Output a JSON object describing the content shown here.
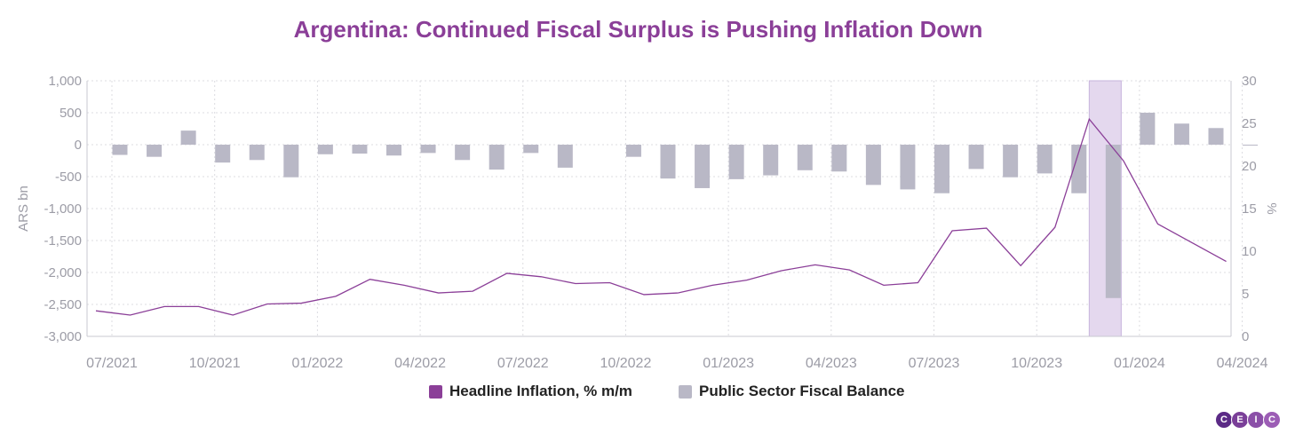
{
  "colors": {
    "title": "#8b3f98",
    "line": "#8b3f98",
    "bar": "#b9b8c6",
    "highlight": "#e4d8ee",
    "highlight_border": "#c6b3dc",
    "axis_text": "#9c9ca6",
    "grid": "#dcdce0"
  },
  "chart_data": {
    "type": "bar",
    "title": "Argentina: Continued Fiscal Surplus is Pushing Inflation Down",
    "ylabel_left": "ARS bn",
    "ylabel_right": "%",
    "left_ylim": [
      -3000,
      1000
    ],
    "right_ylim": [
      0,
      30
    ],
    "left_ticks": [
      "1,000",
      "500",
      "0",
      "-500",
      "-1,000",
      "-1,500",
      "-2,000",
      "-2,500",
      "-3,000"
    ],
    "right_ticks": [
      "30",
      "25",
      "20",
      "15",
      "10",
      "5",
      "0"
    ],
    "x_tick_labels": [
      "07/2021",
      "10/2021",
      "01/2022",
      "04/2022",
      "07/2022",
      "10/2022",
      "01/2023",
      "04/2023",
      "07/2023",
      "10/2023",
      "01/2024",
      "04/2024"
    ],
    "grid": true,
    "legend_position": "bottom",
    "highlight_period": "12/2023",
    "months": [
      "07/2021",
      "08/2021",
      "09/2021",
      "10/2021",
      "11/2021",
      "12/2021",
      "01/2022",
      "02/2022",
      "03/2022",
      "04/2022",
      "05/2022",
      "06/2022",
      "07/2022",
      "08/2022",
      "09/2022",
      "10/2022",
      "11/2022",
      "12/2022",
      "01/2023",
      "02/2023",
      "03/2023",
      "04/2023",
      "05/2023",
      "06/2023",
      "07/2023",
      "08/2023",
      "09/2023",
      "10/2023",
      "11/2023",
      "12/2023",
      "01/2024",
      "02/2024",
      "03/2024",
      "04/2024"
    ],
    "series": [
      {
        "name": "Public Sector Fiscal Balance",
        "type": "bar",
        "axis": "left",
        "values": [
          -160,
          -190,
          220,
          -280,
          -240,
          -510,
          -150,
          -140,
          -170,
          -130,
          -240,
          -390,
          -130,
          -360,
          null,
          -190,
          -530,
          -680,
          -540,
          -480,
          -400,
          -420,
          -630,
          -700,
          -760,
          -380,
          -510,
          -450,
          -760,
          -2400,
          500,
          330,
          260,
          -10
        ]
      },
      {
        "name": "Headline Inflation, % m/m",
        "type": "line",
        "axis": "right",
        "values": [
          3.0,
          2.5,
          3.5,
          3.5,
          2.5,
          3.8,
          3.9,
          4.7,
          6.7,
          6.0,
          5.1,
          5.3,
          7.4,
          7.0,
          6.2,
          6.3,
          4.9,
          5.1,
          6.0,
          6.6,
          7.7,
          8.4,
          7.8,
          6.0,
          6.3,
          12.4,
          12.7,
          8.3,
          12.8,
          25.5,
          20.6,
          13.2,
          11.0,
          8.8
        ]
      }
    ]
  }
}
